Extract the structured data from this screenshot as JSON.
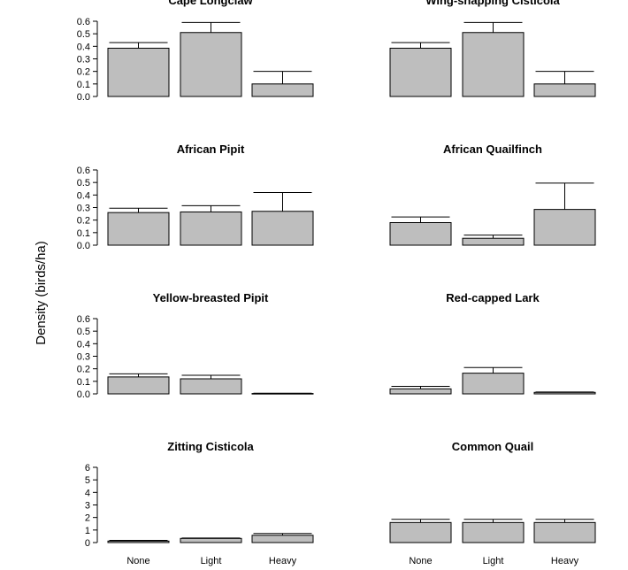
{
  "figure": {
    "ylabel": "Density (birds/ha)",
    "bar_color": "#bebebe",
    "edge_color": "#000000"
  },
  "chart_data": [
    {
      "type": "bar",
      "title": "Cape Longclaw",
      "categories": [
        "None",
        "Light",
        "Heavy"
      ],
      "values": [
        0.385,
        0.51,
        0.1
      ],
      "error_upper": [
        0.43,
        0.59,
        0.2
      ],
      "ylim": [
        0,
        0.6
      ],
      "yticks": [
        "0.0",
        "0.1",
        "0.2",
        "0.3",
        "0.4",
        "0.5",
        "0.6"
      ],
      "show_y_axis": true,
      "show_x_labels": false
    },
    {
      "type": "bar",
      "title": "Wing-snapping Cisticola",
      "categories": [
        "None",
        "Light",
        "Heavy"
      ],
      "values": [
        0.385,
        0.51,
        0.1
      ],
      "error_upper": [
        0.43,
        0.59,
        0.2
      ],
      "ylim": [
        0,
        0.6
      ],
      "yticks": [],
      "show_y_axis": false,
      "show_x_labels": false
    },
    {
      "type": "bar",
      "title": "African Pipit",
      "categories": [
        "None",
        "Light",
        "Heavy"
      ],
      "values": [
        0.26,
        0.265,
        0.27
      ],
      "error_upper": [
        0.295,
        0.315,
        0.42
      ],
      "ylim": [
        0,
        0.6
      ],
      "yticks": [
        "0.0",
        "0.1",
        "0.2",
        "0.3",
        "0.4",
        "0.5",
        "0.6"
      ],
      "show_y_axis": true,
      "show_x_labels": false
    },
    {
      "type": "bar",
      "title": "African Quailfinch",
      "categories": [
        "None",
        "Light",
        "Heavy"
      ],
      "values": [
        0.18,
        0.055,
        0.285
      ],
      "error_upper": [
        0.225,
        0.08,
        0.495
      ],
      "ylim": [
        0,
        0.6
      ],
      "yticks": [],
      "show_y_axis": false,
      "show_x_labels": false
    },
    {
      "type": "bar",
      "title": "Yellow-breasted Pipit",
      "categories": [
        "None",
        "Light",
        "Heavy"
      ],
      "values": [
        0.135,
        0.12,
        0.003
      ],
      "error_upper": [
        0.16,
        0.148,
        0.005
      ],
      "ylim": [
        0,
        0.6
      ],
      "yticks": [
        "0.0",
        "0.1",
        "0.2",
        "0.3",
        "0.4",
        "0.5",
        "0.6"
      ],
      "show_y_axis": true,
      "show_x_labels": false
    },
    {
      "type": "bar",
      "title": "Red-capped Lark",
      "categories": [
        "None",
        "Light",
        "Heavy"
      ],
      "values": [
        0.04,
        0.165,
        0.012
      ],
      "error_upper": [
        0.06,
        0.21,
        0.015
      ],
      "ylim": [
        0,
        0.6
      ],
      "yticks": [],
      "show_y_axis": false,
      "show_x_labels": false
    },
    {
      "type": "bar",
      "title": "Zitting Cisticola",
      "categories": [
        "None",
        "Light",
        "Heavy"
      ],
      "values": [
        0.12,
        0.33,
        0.58
      ],
      "error_upper": [
        0.18,
        0.36,
        0.72
      ],
      "ylim": [
        0,
        6
      ],
      "yticks": [
        "0",
        "1",
        "2",
        "3",
        "4",
        "5",
        "6"
      ],
      "show_y_axis": true,
      "show_x_labels": true
    },
    {
      "type": "bar",
      "title": "Common Quail",
      "categories": [
        "None",
        "Light",
        "Heavy"
      ],
      "values": [
        1.6,
        1.6,
        1.6
      ],
      "error_upper": [
        1.85,
        1.85,
        1.85
      ],
      "ylim": [
        0,
        6
      ],
      "yticks": [],
      "show_y_axis": false,
      "show_x_labels": true
    }
  ]
}
